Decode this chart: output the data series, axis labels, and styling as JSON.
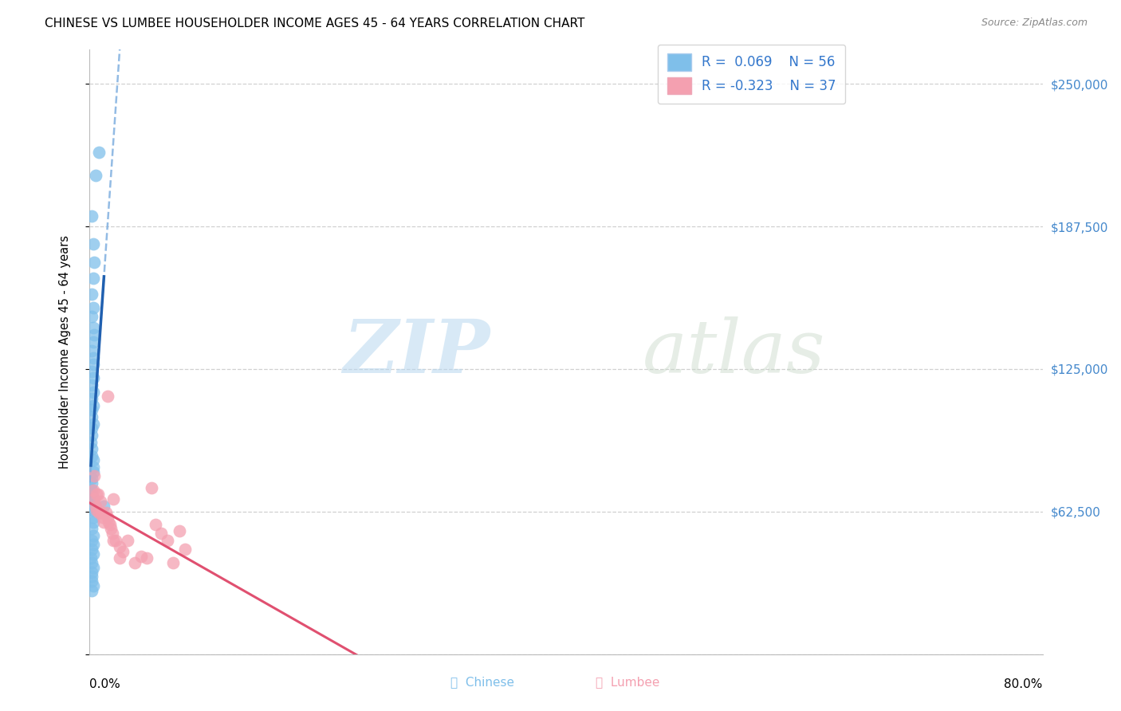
{
  "title": "CHINESE VS LUMBEE HOUSEHOLDER INCOME AGES 45 - 64 YEARS CORRELATION CHART",
  "source": "Source: ZipAtlas.com",
  "ylabel": "Householder Income Ages 45 - 64 years",
  "y_ticks": [
    0,
    62500,
    125000,
    187500,
    250000
  ],
  "y_tick_labels": [
    "",
    "$62,500",
    "$125,000",
    "$187,500",
    "$250,000"
  ],
  "x_min": 0.0,
  "x_max": 0.8,
  "y_min": 0,
  "y_max": 265000,
  "legend_r_chinese": "R =  0.069",
  "legend_n_chinese": "N = 56",
  "legend_r_lumbee": "R = -0.323",
  "legend_n_lumbee": "N = 37",
  "chinese_color": "#7fbfea",
  "lumbee_color": "#f4a0b0",
  "chinese_line_solid_color": "#2060b0",
  "chinese_line_dash_color": "#80b0e0",
  "lumbee_line_color": "#e05070",
  "chinese_scatter_x": [
    0.005,
    0.008,
    0.002,
    0.003,
    0.004,
    0.003,
    0.002,
    0.003,
    0.002,
    0.003,
    0.004,
    0.003,
    0.002,
    0.003,
    0.003,
    0.002,
    0.003,
    0.002,
    0.003,
    0.002,
    0.003,
    0.002,
    0.002,
    0.003,
    0.002,
    0.002,
    0.001,
    0.002,
    0.002,
    0.003,
    0.003,
    0.003,
    0.002,
    0.002,
    0.002,
    0.002,
    0.003,
    0.002,
    0.002,
    0.003,
    0.003,
    0.002,
    0.012,
    0.003,
    0.002,
    0.003,
    0.002,
    0.003,
    0.001,
    0.002,
    0.003,
    0.002,
    0.002,
    0.002,
    0.003,
    0.002
  ],
  "chinese_scatter_y": [
    210000,
    220000,
    192000,
    180000,
    172000,
    165000,
    158000,
    152000,
    148000,
    143000,
    140000,
    137000,
    133000,
    130000,
    127000,
    124000,
    121000,
    118000,
    115000,
    112000,
    109000,
    107000,
    104000,
    101000,
    99000,
    96000,
    93000,
    90000,
    87000,
    85000,
    82000,
    80000,
    77000,
    75000,
    72000,
    70000,
    68000,
    65000,
    63000,
    60000,
    58000,
    55000,
    65000,
    52000,
    50000,
    48000,
    46000,
    44000,
    42000,
    40000,
    38000,
    36000,
    34000,
    32000,
    30000,
    28000
  ],
  "lumbee_scatter_x": [
    0.003,
    0.004,
    0.005,
    0.006,
    0.007,
    0.008,
    0.009,
    0.01,
    0.011,
    0.012,
    0.014,
    0.015,
    0.016,
    0.017,
    0.018,
    0.019,
    0.02,
    0.022,
    0.025,
    0.028,
    0.032,
    0.038,
    0.043,
    0.048,
    0.052,
    0.055,
    0.06,
    0.065,
    0.07,
    0.075,
    0.08,
    0.004,
    0.006,
    0.01,
    0.015,
    0.02,
    0.025
  ],
  "lumbee_scatter_y": [
    72000,
    68000,
    65000,
    63000,
    70000,
    62000,
    67000,
    62000,
    60000,
    58000,
    62000,
    60000,
    58000,
    57000,
    55000,
    53000,
    50000,
    50000,
    47000,
    45000,
    50000,
    40000,
    43000,
    42000,
    73000,
    57000,
    53000,
    50000,
    40000,
    54000,
    46000,
    78000,
    70000,
    62000,
    113000,
    68000,
    42000
  ],
  "watermark_zip": "ZIP",
  "watermark_atlas": "atlas",
  "background_color": "#ffffff",
  "grid_color": "#d0d0d0",
  "title_fontsize": 11,
  "source_fontsize": 9,
  "tick_label_fontsize": 11
}
